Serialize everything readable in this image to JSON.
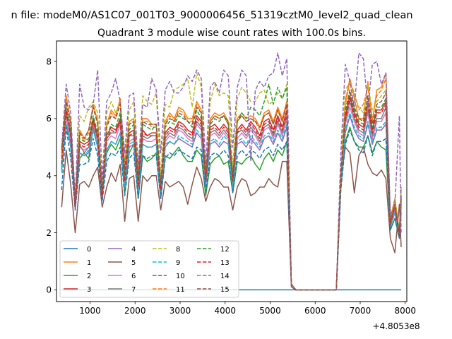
{
  "chart_data": {
    "type": "line",
    "suptitle": "n file: modeM0/AS1C07_001T03_9000006456_51319cztM0_level2_quad_clean",
    "title": "Quadrant 3 module wise count rates with 100.0s bins.",
    "xlabel": "",
    "ylabel": "",
    "x_offset_label": "+4.8053e8",
    "xlim": [
      255,
      8035
    ],
    "ylim": [
      -0.41,
      8.72
    ],
    "xticks": [
      1000,
      2000,
      3000,
      4000,
      5000,
      6000,
      7000,
      8000
    ],
    "xtick_labels": [
      "1000",
      "2000",
      "3000",
      "4000",
      "5000",
      "6000",
      "7000",
      "8000"
    ],
    "yticks": [
      0,
      2,
      4,
      6,
      8
    ],
    "ytick_labels": [
      "0",
      "2",
      "4",
      "6",
      "8"
    ],
    "legend_position": "lower-left",
    "x": [
      370,
      470,
      570,
      670,
      770,
      870,
      970,
      1070,
      1170,
      1270,
      1370,
      1470,
      1570,
      1670,
      1770,
      1870,
      1970,
      2070,
      2170,
      2270,
      2370,
      2470,
      2570,
      2670,
      2770,
      2870,
      2970,
      3070,
      3170,
      3270,
      3370,
      3470,
      3570,
      3670,
      3770,
      3870,
      3970,
      4070,
      4170,
      4270,
      4370,
      4470,
      4570,
      4670,
      4770,
      4870,
      4970,
      5070,
      5170,
      5270,
      5370,
      5470,
      5570,
      6470,
      6570,
      6670,
      6770,
      6870,
      6970,
      7070,
      7170,
      7270,
      7370,
      7470,
      7570,
      7670,
      7770,
      7870,
      7910
    ],
    "series": [
      {
        "name": "0",
        "color": "#1f77b4",
        "dash": "solid",
        "values": [
          0,
          0,
          0,
          0,
          0,
          0,
          0,
          0,
          0,
          0,
          0,
          0,
          0,
          0,
          0,
          0,
          0,
          0,
          0,
          0,
          0,
          0,
          0,
          0,
          0,
          0,
          0,
          0,
          0,
          0,
          0,
          0,
          0,
          0,
          0,
          0,
          0,
          0,
          0,
          0,
          0,
          0,
          0,
          0,
          0,
          0,
          0,
          0,
          0,
          0,
          0,
          0,
          0,
          0,
          0,
          0,
          0,
          0,
          0,
          0,
          0,
          0,
          0,
          0,
          0,
          0,
          0,
          0,
          0
        ]
      },
      {
        "name": "1",
        "color": "#ff7f0e",
        "dash": "solid",
        "values": [
          4.8,
          6.8,
          5.9,
          3.0,
          5.6,
          5.3,
          5.6,
          6.5,
          5.9,
          3.5,
          5.8,
          6.3,
          6.1,
          6.7,
          4.4,
          5.9,
          6.0,
          4.1,
          6.0,
          6.0,
          5.8,
          5.8,
          3.7,
          5.9,
          6.2,
          6.0,
          6.4,
          6.3,
          6.0,
          6.0,
          6.6,
          6.3,
          4.0,
          6.0,
          6.2,
          6.1,
          6.2,
          5.9,
          4.0,
          6.0,
          6.2,
          6.0,
          6.1,
          6.0,
          5.7,
          6.2,
          6.3,
          5.9,
          6.4,
          6.0,
          6.6,
          0.2,
          0,
          0,
          4.0,
          6.6,
          7.4,
          6.7,
          6.0,
          6.0,
          7.3,
          5.9,
          7.0,
          7.1,
          7.6,
          2.5,
          3.2,
          2.0,
          3.6
        ]
      },
      {
        "name": "2",
        "color": "#2ca02c",
        "dash": "solid",
        "values": [
          4.2,
          6.1,
          5.0,
          3.0,
          4.6,
          4.8,
          4.6,
          5.7,
          5.0,
          3.3,
          4.8,
          5.1,
          4.9,
          5.3,
          3.4,
          4.8,
          5.1,
          3.2,
          4.7,
          4.5,
          4.6,
          4.8,
          3.2,
          4.7,
          4.6,
          4.8,
          5.0,
          4.7,
          4.5,
          4.5,
          4.9,
          4.7,
          3.3,
          4.4,
          4.6,
          4.7,
          4.4,
          4.5,
          3.4,
          4.5,
          4.4,
          4.6,
          4.7,
          4.4,
          4.2,
          4.6,
          4.8,
          4.5,
          4.9,
          4.7,
          5.2,
          0.2,
          0,
          0,
          3.6,
          5.2,
          5.7,
          5.2,
          5.0,
          5.0,
          5.4,
          4.8,
          5.2,
          5.0,
          4.9,
          2.1,
          2.5,
          1.8,
          2.7
        ]
      },
      {
        "name": "3",
        "color": "#d62728",
        "dash": "solid",
        "values": [
          4.5,
          6.2,
          5.5,
          2.9,
          5.2,
          5.1,
          5.2,
          6.0,
          5.4,
          3.3,
          5.4,
          5.7,
          5.6,
          6.0,
          3.8,
          5.5,
          5.6,
          3.7,
          5.6,
          5.4,
          5.5,
          5.5,
          3.5,
          5.5,
          5.7,
          5.6,
          5.9,
          5.8,
          5.6,
          5.5,
          6.1,
          5.9,
          3.8,
          5.7,
          5.8,
          5.6,
          5.8,
          5.6,
          3.8,
          5.6,
          5.8,
          5.6,
          5.9,
          5.7,
          5.4,
          5.9,
          6.0,
          5.6,
          6.1,
          5.7,
          6.3,
          0.2,
          0,
          0,
          3.9,
          6.1,
          6.8,
          6.2,
          5.8,
          5.7,
          6.6,
          5.6,
          6.3,
          6.3,
          6.6,
          2.3,
          2.9,
          1.9,
          3.2
        ]
      },
      {
        "name": "4",
        "color": "#9467bd",
        "dash": "solid",
        "values": [
          4.3,
          5.8,
          5.1,
          2.9,
          4.8,
          4.7,
          4.8,
          5.6,
          5.0,
          3.2,
          4.9,
          5.2,
          5.1,
          5.5,
          3.6,
          5.0,
          5.1,
          3.4,
          5.1,
          5.0,
          5.0,
          5.1,
          3.3,
          5.0,
          5.2,
          5.1,
          5.3,
          5.2,
          5.1,
          5.0,
          5.5,
          5.3,
          3.6,
          5.1,
          5.2,
          5.0,
          5.2,
          5.1,
          3.6,
          5.1,
          5.2,
          5.0,
          5.3,
          5.1,
          4.9,
          5.3,
          5.4,
          5.1,
          5.5,
          5.2,
          5.7,
          0.2,
          0,
          0,
          3.7,
          5.5,
          6.1,
          5.6,
          5.3,
          5.2,
          5.8,
          5.1,
          5.6,
          5.6,
          5.8,
          2.2,
          2.7,
          1.9,
          2.9
        ]
      },
      {
        "name": "5",
        "color": "#8c564b",
        "dash": "solid",
        "values": [
          2.9,
          4.9,
          3.7,
          2.0,
          3.7,
          3.8,
          3.6,
          4.0,
          4.3,
          2.9,
          3.6,
          4.1,
          3.8,
          4.4,
          2.4,
          3.9,
          4.0,
          2.4,
          4.0,
          3.8,
          4.0,
          4.0,
          2.8,
          3.8,
          3.6,
          3.7,
          3.8,
          3.6,
          3.0,
          3.7,
          4.3,
          3.9,
          3.1,
          3.6,
          3.9,
          3.8,
          3.6,
          3.6,
          2.8,
          3.6,
          3.9,
          3.8,
          3.3,
          3.4,
          3.6,
          3.6,
          3.9,
          3.7,
          3.6,
          4.5,
          4.5,
          0.1,
          0,
          0,
          3.9,
          5.0,
          4.8,
          3.4,
          4.7,
          5.0,
          4.4,
          4.1,
          4.0,
          4.2,
          3.9,
          1.8,
          1.3,
          3.0,
          1.5
        ]
      },
      {
        "name": "6",
        "color": "#e377c2",
        "dash": "solid",
        "values": [
          4.4,
          6.0,
          5.3,
          2.8,
          5.0,
          4.9,
          5.0,
          5.8,
          5.2,
          3.2,
          5.2,
          5.4,
          5.3,
          5.8,
          3.7,
          5.2,
          5.3,
          3.5,
          5.3,
          5.2,
          5.2,
          5.3,
          3.4,
          5.2,
          5.4,
          5.3,
          5.6,
          5.5,
          5.3,
          5.2,
          5.8,
          5.6,
          3.7,
          5.4,
          5.5,
          5.3,
          5.5,
          5.3,
          3.7,
          5.3,
          5.5,
          5.3,
          5.6,
          5.4,
          5.1,
          5.6,
          5.7,
          5.3,
          5.8,
          5.4,
          6.0,
          0.2,
          0,
          0,
          3.8,
          5.8,
          6.4,
          5.9,
          5.5,
          5.4,
          6.2,
          5.3,
          5.9,
          5.9,
          6.2,
          2.2,
          2.8,
          1.9,
          3.0
        ]
      },
      {
        "name": "7",
        "color": "#7f7f7f",
        "dash": "solid",
        "values": [
          4.4,
          6.3,
          5.4,
          2.9,
          5.1,
          4.8,
          5.0,
          5.9,
          5.3,
          3.3,
          5.3,
          5.5,
          5.5,
          5.9,
          3.9,
          5.4,
          5.4,
          3.6,
          5.4,
          5.3,
          5.4,
          5.4,
          3.5,
          5.3,
          5.5,
          5.4,
          5.7,
          5.6,
          5.4,
          5.3,
          5.9,
          5.7,
          3.8,
          5.5,
          5.6,
          5.4,
          5.6,
          5.4,
          3.8,
          5.5,
          5.6,
          5.4,
          5.7,
          5.5,
          5.2,
          5.7,
          5.8,
          5.4,
          5.9,
          5.5,
          6.1,
          0.2,
          0,
          0,
          3.9,
          5.9,
          6.6,
          6.0,
          5.6,
          5.5,
          6.3,
          5.4,
          6.0,
          6.0,
          6.4,
          2.3,
          2.9,
          2.0,
          3.1
        ]
      },
      {
        "name": "8",
        "color": "#bcbd22",
        "dash": "dashed",
        "values": [
          4.5,
          6.5,
          5.8,
          3.1,
          6.1,
          5.9,
          6.4,
          6.6,
          6.2,
          3.5,
          6.2,
          6.6,
          6.2,
          6.6,
          4.4,
          6.3,
          6.6,
          4.2,
          6.8,
          6.6,
          6.5,
          6.9,
          4.0,
          6.5,
          6.4,
          7.0,
          7.1,
          7.2,
          7.4,
          6.4,
          7.6,
          7.1,
          4.2,
          6.6,
          7.2,
          6.8,
          6.9,
          6.8,
          4.3,
          6.7,
          7.1,
          6.9,
          6.6,
          6.6,
          6.9,
          7.0,
          6.5,
          6.6,
          6.9,
          6.7,
          7.2,
          0.2,
          0,
          0,
          4.4,
          7.0,
          7.3,
          6.8,
          6.4,
          6.2,
          7.2,
          6.3,
          6.6,
          6.8,
          7.0,
          2.5,
          3.2,
          2.1,
          3.6
        ]
      },
      {
        "name": "9",
        "color": "#17becf",
        "dash": "dashed",
        "values": [
          4.1,
          5.8,
          5.0,
          2.9,
          4.8,
          4.7,
          4.9,
          5.6,
          5.0,
          3.3,
          4.9,
          5.2,
          5.1,
          5.5,
          3.6,
          5.1,
          5.2,
          3.4,
          5.1,
          5.0,
          5.0,
          5.1,
          3.4,
          5.1,
          5.2,
          5.1,
          5.4,
          5.3,
          5.2,
          5.1,
          5.6,
          5.4,
          3.7,
          5.2,
          5.3,
          5.1,
          5.4,
          5.2,
          3.6,
          5.2,
          5.3,
          5.1,
          5.4,
          5.2,
          5.0,
          5.4,
          5.5,
          5.2,
          5.6,
          5.3,
          5.8,
          0.2,
          0,
          0,
          3.7,
          5.6,
          6.2,
          5.7,
          5.4,
          5.3,
          5.9,
          5.2,
          5.7,
          5.7,
          5.9,
          2.2,
          2.7,
          1.9,
          3.0
        ]
      },
      {
        "name": "10",
        "color": "#1f77b4",
        "dash": "dashed",
        "values": [
          3.5,
          5.7,
          4.6,
          2.8,
          4.4,
          4.4,
          4.5,
          5.3,
          4.7,
          3.1,
          4.5,
          4.8,
          4.7,
          5.0,
          3.3,
          4.6,
          4.8,
          3.2,
          4.7,
          4.6,
          4.7,
          4.7,
          3.2,
          4.6,
          4.8,
          4.7,
          4.9,
          4.8,
          4.7,
          4.6,
          5.0,
          4.9,
          3.4,
          4.7,
          4.8,
          4.7,
          4.9,
          4.7,
          3.4,
          4.7,
          4.9,
          4.7,
          4.9,
          4.8,
          4.6,
          4.9,
          5.0,
          4.7,
          5.1,
          4.9,
          5.2,
          0.2,
          0,
          0,
          3.5,
          5.1,
          5.6,
          5.2,
          4.9,
          4.8,
          5.4,
          4.7,
          5.2,
          5.2,
          5.3,
          2.1,
          2.5,
          1.8,
          2.8
        ]
      },
      {
        "name": "11",
        "color": "#ff7f0e",
        "dash": "dashed",
        "values": [
          4.7,
          6.7,
          5.9,
          3.0,
          5.5,
          5.2,
          5.5,
          6.4,
          5.8,
          3.4,
          5.7,
          6.2,
          6.0,
          6.6,
          4.3,
          5.8,
          5.9,
          4.0,
          5.9,
          5.9,
          5.7,
          5.7,
          3.6,
          5.8,
          6.1,
          5.9,
          6.3,
          6.2,
          5.9,
          5.9,
          6.5,
          6.2,
          3.9,
          5.9,
          6.1,
          6.0,
          6.1,
          5.8,
          3.9,
          5.9,
          6.1,
          5.9,
          6.0,
          5.9,
          5.6,
          6.1,
          6.2,
          5.8,
          6.3,
          5.9,
          6.5,
          0.2,
          0,
          0,
          4.0,
          6.5,
          7.3,
          6.9,
          6.3,
          6.5,
          7.1,
          6.0,
          6.8,
          7.0,
          7.4,
          2.4,
          3.1,
          2.0,
          3.5
        ]
      },
      {
        "name": "12",
        "color": "#2ca02c",
        "dash": "dashed",
        "values": [
          4.6,
          6.4,
          5.6,
          3.0,
          5.3,
          5.2,
          5.3,
          6.1,
          5.5,
          3.4,
          5.4,
          5.8,
          5.7,
          6.2,
          4.0,
          5.6,
          5.8,
          3.8,
          5.8,
          5.7,
          5.6,
          5.8,
          3.6,
          5.7,
          5.9,
          5.8,
          6.1,
          6.0,
          5.9,
          5.7,
          6.3,
          6.0,
          3.9,
          5.8,
          6.0,
          5.9,
          6.1,
          5.9,
          3.9,
          5.9,
          6.2,
          6.0,
          6.4,
          6.3,
          6.1,
          6.6,
          7.2,
          6.5,
          7.1,
          6.7,
          7.1,
          0.2,
          0,
          0,
          4.0,
          6.2,
          6.9,
          6.3,
          5.9,
          5.8,
          6.7,
          5.7,
          6.4,
          6.4,
          6.7,
          2.3,
          2.9,
          2.0,
          3.3
        ]
      },
      {
        "name": "13",
        "color": "#d62728",
        "dash": "dashed",
        "values": [
          4.4,
          6.3,
          5.4,
          2.9,
          5.1,
          5.0,
          5.1,
          5.9,
          5.3,
          3.3,
          5.3,
          5.6,
          5.5,
          5.9,
          3.8,
          5.4,
          5.5,
          3.6,
          5.5,
          5.4,
          5.4,
          5.4,
          3.5,
          5.4,
          5.6,
          5.5,
          5.8,
          5.7,
          5.5,
          5.4,
          6.0,
          5.8,
          3.8,
          5.6,
          5.7,
          5.5,
          5.7,
          5.5,
          3.8,
          5.5,
          5.7,
          5.5,
          5.8,
          5.6,
          5.3,
          5.8,
          5.9,
          5.5,
          6.0,
          5.6,
          6.2,
          0.2,
          0,
          0,
          3.9,
          6.0,
          6.7,
          6.1,
          5.7,
          5.6,
          6.5,
          5.5,
          6.2,
          6.2,
          6.5,
          2.3,
          2.9,
          1.9,
          3.2
        ]
      },
      {
        "name": "14",
        "color": "#9467bd",
        "dash": "dashed",
        "values": [
          5.0,
          7.2,
          6.2,
          3.2,
          7.2,
          6.4,
          6.3,
          6.5,
          7.7,
          3.9,
          6.6,
          6.9,
          7.4,
          6.6,
          4.8,
          6.8,
          6.9,
          4.4,
          6.5,
          6.4,
          7.4,
          7.0,
          4.8,
          7.0,
          7.3,
          6.9,
          6.9,
          7.1,
          7.5,
          7.3,
          7.7,
          7.4,
          4.4,
          7.1,
          7.3,
          6.9,
          7.7,
          7.5,
          5.0,
          7.1,
          7.7,
          7.5,
          4.5,
          7.0,
          7.3,
          7.1,
          7.5,
          7.6,
          8.3,
          7.5,
          8.1,
          0.2,
          0,
          0,
          4.8,
          7.9,
          7.3,
          6.4,
          8.3,
          8.1,
          6.4,
          7.9,
          8.0,
          7.2,
          7.6,
          2.6,
          3.0,
          6.1,
          2.0
        ]
      },
      {
        "name": "15",
        "color": "#8c564b",
        "dash": "dashed",
        "values": [
          4.9,
          6.6,
          5.8,
          3.1,
          5.5,
          5.3,
          5.6,
          6.4,
          5.8,
          3.5,
          5.7,
          6.1,
          6.0,
          6.5,
          4.2,
          5.8,
          5.9,
          4.0,
          5.9,
          5.8,
          5.8,
          5.8,
          3.7,
          5.8,
          6.0,
          5.9,
          6.2,
          6.1,
          5.9,
          5.8,
          6.4,
          6.2,
          4.0,
          5.9,
          6.1,
          6.0,
          6.1,
          5.8,
          4.0,
          5.9,
          6.1,
          5.9,
          6.0,
          5.9,
          5.7,
          6.1,
          6.2,
          5.8,
          6.3,
          5.9,
          6.5,
          0.2,
          0,
          0,
          4.0,
          6.3,
          7.0,
          6.4,
          6.0,
          5.9,
          6.8,
          5.8,
          6.5,
          6.6,
          6.9,
          2.4,
          3.0,
          2.0,
          3.3
        ]
      }
    ]
  }
}
